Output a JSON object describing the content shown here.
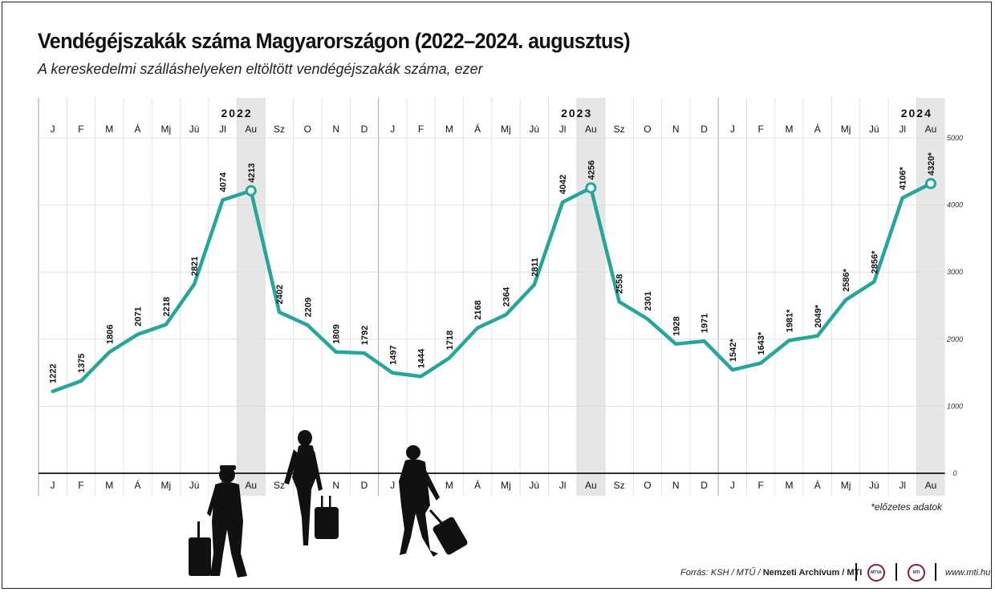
{
  "title": "Vendégéjszakák száma Magyarországon (2022–2024. augusztus)",
  "subtitle": "A kereskedelmi szálláshelyeken eltöltött vendégéjszakák száma, ezer",
  "footnote": "*előzetes adatok",
  "source": {
    "prefix": "Forrás: KSH / MTŰ / ",
    "bold": "Nemzeti Archívum / MTI",
    "url": "www.mti.hu",
    "logo1": "MTVA",
    "logo2": "MTI"
  },
  "colors": {
    "line": "#26a69a",
    "highlight": "#e6e6e6",
    "grid": "#dcdcdc"
  },
  "chart_data": {
    "type": "line",
    "years": [
      "2022",
      "2023",
      "2024"
    ],
    "categories": [
      "J",
      "F",
      "M",
      "Á",
      "Mj",
      "Jú",
      "Jl",
      "Au",
      "Sz",
      "O",
      "N",
      "D",
      "J",
      "F",
      "M",
      "Á",
      "Mj",
      "Jú",
      "Jl",
      "Au",
      "Sz",
      "O",
      "N",
      "D",
      "J",
      "F",
      "M",
      "Á",
      "Mj",
      "Jú",
      "Jl",
      "Au"
    ],
    "values": [
      1222,
      1375,
      1806,
      2071,
      2218,
      2821,
      4074,
      4213,
      2402,
      2209,
      1809,
      1792,
      1497,
      1444,
      1718,
      2168,
      2364,
      2811,
      4042,
      4256,
      2558,
      2301,
      1928,
      1971,
      1542,
      1643,
      1981,
      2049,
      2586,
      2856,
      4106,
      4320
    ],
    "labels": [
      "1222",
      "1375",
      "1806",
      "2071",
      "2218",
      "2821",
      "4074",
      "4213",
      "2402",
      "2209",
      "1809",
      "1792",
      "1497",
      "1444",
      "1718",
      "2168",
      "2364",
      "2811",
      "4042",
      "4256",
      "2558",
      "2301",
      "1928",
      "1971",
      "1542*",
      "1643*",
      "1981*",
      "2049*",
      "2586*",
      "2856*",
      "4106*",
      "4320*"
    ],
    "highlighted": [
      "Au 2022",
      "Au 2023",
      "Au 2024"
    ],
    "ylim": [
      0,
      5000
    ],
    "yticks": [
      0,
      1000,
      2000,
      3000,
      4000,
      5000
    ],
    "xlabel": "",
    "ylabel": "",
    "grid": true
  }
}
